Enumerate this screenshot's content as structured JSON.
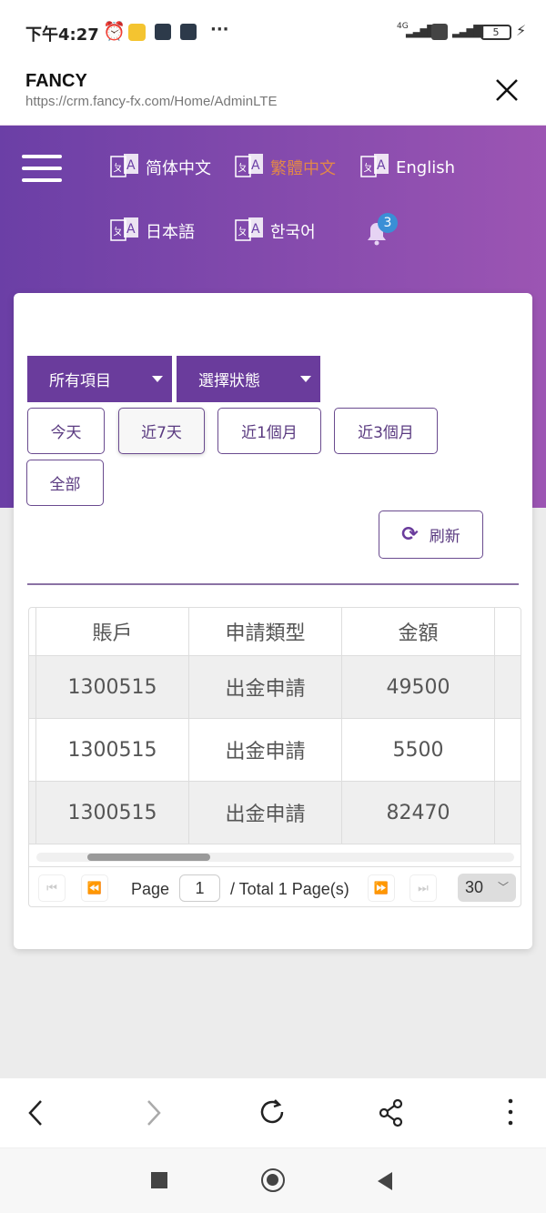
{
  "status_bar": {
    "time": "下午4:27",
    "network": "4G",
    "battery": "5"
  },
  "browser": {
    "title": "FANCY",
    "url": "https://crm.fancy-fx.com/Home/AdminLTE"
  },
  "header": {
    "languages": [
      {
        "label": "简体中文",
        "active": false
      },
      {
        "label": "繁體中文",
        "active": true
      },
      {
        "label": "English",
        "active": false
      },
      {
        "label": "日本語",
        "active": false
      },
      {
        "label": "한국어",
        "active": false
      }
    ],
    "notification_count": "3",
    "active_color": "#e0874a"
  },
  "filters": {
    "type_select": "所有項目",
    "status_select": "選擇狀態",
    "ranges": [
      "今天",
      "近7天",
      "近1個月",
      "近3個月",
      "全部"
    ],
    "selected_range": "近7天",
    "refresh_label": "刷新"
  },
  "table": {
    "columns": [
      "賬戶",
      "申請類型",
      "金額"
    ],
    "rows": [
      [
        "1300515",
        "出金申請",
        "49500"
      ],
      [
        "1300515",
        "出金申請",
        "5500"
      ],
      [
        "1300515",
        "出金申請",
        "82470"
      ]
    ]
  },
  "pager": {
    "page_label": "Page",
    "page_value": "1",
    "total_label": "/ Total 1 Page(s)",
    "page_size": "30"
  },
  "accent": "#6a3c9c"
}
